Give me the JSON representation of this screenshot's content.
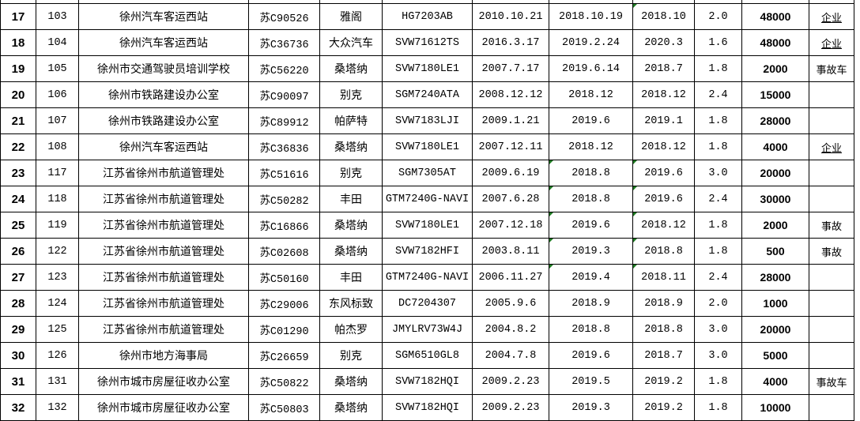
{
  "rows": [
    {
      "n": "17",
      "id": "103",
      "unit": "徐州汽车客运西站",
      "plate": "苏C90526",
      "brand": "雅阁",
      "model": "HG7203AB",
      "reg_date": "2010.10.21",
      "date2": "2018.10.19",
      "date3": "2018.10",
      "disp": "2.0",
      "price": "48000",
      "note": "企业",
      "flags": [
        false,
        true
      ]
    },
    {
      "n": "18",
      "id": "104",
      "unit": "徐州汽车客运西站",
      "plate": "苏C36736",
      "brand": "大众汽车",
      "model": "SVW71612TS",
      "reg_date": "2016.3.17",
      "date2": "2019.2.24",
      "date3": "2020.3",
      "disp": "1.6",
      "price": "48000",
      "note": "企业",
      "flags": [
        false,
        false
      ]
    },
    {
      "n": "19",
      "id": "105",
      "unit": "徐州市交通驾驶员培训学校",
      "plate": "苏C56220",
      "brand": "桑塔纳",
      "model": "SVW7180LE1",
      "reg_date": "2007.7.17",
      "date2": "2019.6.14",
      "date3": "2018.7",
      "disp": "1.8",
      "price": "2000",
      "note": "事故车",
      "flags": [
        false,
        false
      ]
    },
    {
      "n": "20",
      "id": "106",
      "unit": "徐州市铁路建设办公室",
      "plate": "苏C90097",
      "brand": "别克",
      "model": "SGM7240ATA",
      "reg_date": "2008.12.12",
      "date2": "2018.12",
      "date3": "2018.12",
      "disp": "2.4",
      "price": "15000",
      "note": "",
      "flags": [
        false,
        false
      ]
    },
    {
      "n": "21",
      "id": "107",
      "unit": "徐州市铁路建设办公室",
      "plate": "苏C89912",
      "brand": "帕萨特",
      "model": "SVW7183LJI",
      "reg_date": "2009.1.21",
      "date2": "2019.6",
      "date3": "2019.1",
      "disp": "1.8",
      "price": "28000",
      "note": "",
      "flags": [
        false,
        false
      ]
    },
    {
      "n": "22",
      "id": "108",
      "unit": "徐州汽车客运西站",
      "plate": "苏C36836",
      "brand": "桑塔纳",
      "model": "SVW7180LE1",
      "reg_date": "2007.12.11",
      "date2": "2018.12",
      "date3": "2018.12",
      "disp": "1.8",
      "price": "4000",
      "note": "企业",
      "flags": [
        false,
        false
      ]
    },
    {
      "n": "23",
      "id": "117",
      "unit": "江苏省徐州市航道管理处",
      "plate": "苏C51616",
      "brand": "别克",
      "model": "SGM7305AT",
      "reg_date": "2009.6.19",
      "date2": "2018.8",
      "date3": "2019.6",
      "disp": "3.0",
      "price": "20000",
      "note": "",
      "flags": [
        true,
        true
      ]
    },
    {
      "n": "24",
      "id": "118",
      "unit": "江苏省徐州市航道管理处",
      "plate": "苏C50282",
      "brand": "丰田",
      "model": "GTM7240G-NAVI",
      "reg_date": "2007.6.28",
      "date2": "2018.8",
      "date3": "2019.6",
      "disp": "2.4",
      "price": "30000",
      "note": "",
      "flags": [
        true,
        true
      ]
    },
    {
      "n": "25",
      "id": "119",
      "unit": "江苏省徐州市航道管理处",
      "plate": "苏C16866",
      "brand": "桑塔纳",
      "model": "SVW7180LE1",
      "reg_date": "2007.12.18",
      "date2": "2019.6",
      "date3": "2018.12",
      "disp": "1.8",
      "price": "2000",
      "note": "事故",
      "flags": [
        true,
        true
      ]
    },
    {
      "n": "26",
      "id": "122",
      "unit": "江苏省徐州市航道管理处",
      "plate": "苏C02608",
      "brand": "桑塔纳",
      "model": "SVW7182HFI",
      "reg_date": "2003.8.11",
      "date2": "2019.3",
      "date3": "2018.8",
      "disp": "1.8",
      "price": "500",
      "note": "事故",
      "flags": [
        true,
        true
      ]
    },
    {
      "n": "27",
      "id": "123",
      "unit": "江苏省徐州市航道管理处",
      "plate": "苏C50160",
      "brand": "丰田",
      "model": "GTM7240G-NAVI",
      "reg_date": "2006.11.27",
      "date2": "2019.4",
      "date3": "2018.11",
      "disp": "2.4",
      "price": "28000",
      "note": "",
      "flags": [
        true,
        true
      ]
    },
    {
      "n": "28",
      "id": "124",
      "unit": "江苏省徐州市航道管理处",
      "plate": "苏C29006",
      "brand": "东风标致",
      "model": "DC7204307",
      "reg_date": "2005.9.6",
      "date2": "2018.9",
      "date3": "2018.9",
      "disp": "2.0",
      "price": "1000",
      "note": "",
      "flags": [
        false,
        false
      ]
    },
    {
      "n": "29",
      "id": "125",
      "unit": "江苏省徐州市航道管理处",
      "plate": "苏C01290",
      "brand": "帕杰罗",
      "model": "JMYLRV73W4J",
      "reg_date": "2004.8.2",
      "date2": "2018.8",
      "date3": "2018.8",
      "disp": "3.0",
      "price": "20000",
      "note": "",
      "flags": [
        false,
        false
      ]
    },
    {
      "n": "30",
      "id": "126",
      "unit": "徐州市地方海事局",
      "plate": "苏C26659",
      "brand": "别克",
      "model": "SGM6510GL8",
      "reg_date": "2004.7.8",
      "date2": "2019.6",
      "date3": "2018.7",
      "disp": "3.0",
      "price": "5000",
      "note": "",
      "flags": [
        false,
        false
      ]
    },
    {
      "n": "31",
      "id": "131",
      "unit": "徐州市城市房屋征收办公室",
      "plate": "苏C50822",
      "brand": "桑塔纳",
      "model": "SVW7182HQI",
      "reg_date": "2009.2.23",
      "date2": "2019.5",
      "date3": "2019.2",
      "disp": "1.8",
      "price": "4000",
      "note": "事故车",
      "flags": [
        false,
        false
      ]
    },
    {
      "n": "32",
      "id": "132",
      "unit": "徐州市城市房屋征收办公室",
      "plate": "苏C50803",
      "brand": "桑塔纳",
      "model": "SVW7182HQI",
      "reg_date": "2009.2.23",
      "date2": "2019.3",
      "date3": "2019.2",
      "disp": "1.8",
      "price": "10000",
      "note": "",
      "flags": [
        false,
        false
      ]
    }
  ],
  "colors": {
    "grid": "#000000",
    "marker": "#1e7b22"
  }
}
